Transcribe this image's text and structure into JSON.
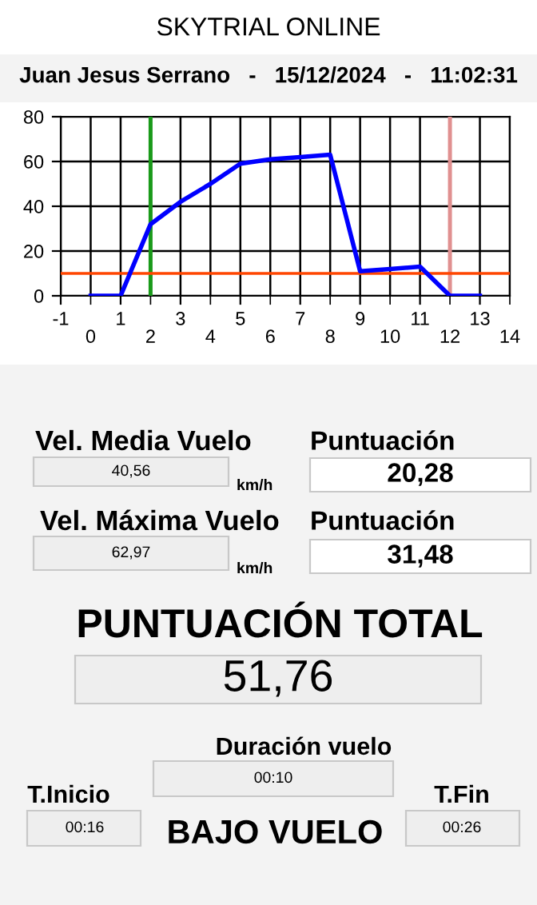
{
  "chart_data": [
    {
      "type": "line",
      "title": "SKYTRIAL ONLINE",
      "subtitle": "Juan Jesus Serrano   -   15/12/2024   -   11:02:31",
      "x": [
        0,
        1,
        2,
        3,
        4,
        5,
        6,
        7,
        8,
        9,
        10,
        11,
        12,
        13
      ],
      "series": [
        {
          "color": "#0000ff",
          "values": [
            0,
            0,
            32,
            42,
            50,
            59,
            61,
            62,
            63,
            11,
            12,
            13,
            0,
            0
          ]
        }
      ],
      "xlim": [
        -1,
        14
      ],
      "xticks": [
        -1,
        1,
        3,
        5,
        7,
        9,
        11,
        13
      ],
      "x2lim": [
        -1,
        14
      ],
      "x2ticks": [
        0,
        2,
        4,
        6,
        8,
        10,
        12,
        14
      ],
      "ylim": [
        0,
        80
      ],
      "yticks": [
        0,
        20,
        40,
        60,
        80
      ],
      "grid": true,
      "marker": "none",
      "line_style": "solid",
      "ref_lines": [
        {
          "axis": "x",
          "value": 2,
          "color": "#1a9a1a"
        },
        {
          "axis": "x",
          "value": 12,
          "color": "#e09090"
        },
        {
          "axis": "y",
          "value": 10,
          "color": "#ff4500"
        }
      ]
    },
    {
      "type": "other",
      "annotations": [
        "Vel. Media Vuelo",
        "40,56",
        "km/h",
        "Puntuación",
        "20,28",
        "Vel. Máxima Vuelo",
        "62,97",
        "km/h",
        "Puntuación",
        "31,48",
        "PUNTUACIÓN TOTAL",
        "51,76",
        "Duración vuelo",
        "00:10",
        "T.Inicio",
        "00:16",
        "BAJO VUELO",
        "T.Fin",
        "00:26"
      ]
    }
  ]
}
